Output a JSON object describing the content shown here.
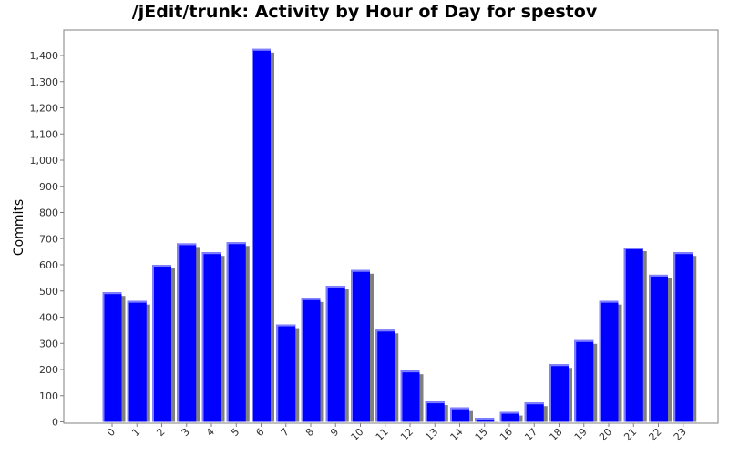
{
  "chart_data": {
    "type": "bar",
    "title": "/jEdit/trunk: Activity by Hour of Day for spestov",
    "xlabel": "",
    "ylabel": "Commits",
    "categories": [
      "0",
      "1",
      "2",
      "3",
      "4",
      "5",
      "6",
      "7",
      "8",
      "9",
      "10",
      "11",
      "12",
      "13",
      "14",
      "15",
      "16",
      "17",
      "18",
      "19",
      "20",
      "21",
      "22",
      "23"
    ],
    "values": [
      495,
      462,
      600,
      682,
      648,
      686,
      1425,
      372,
      472,
      520,
      580,
      352,
      196,
      78,
      55,
      15,
      38,
      74,
      220,
      312,
      462,
      666,
      562,
      648
    ],
    "yticks": [
      "0",
      "100",
      "200",
      "300",
      "400",
      "500",
      "600",
      "700",
      "800",
      "900",
      "1,000",
      "1,100",
      "1,200",
      "1,300",
      "1,400"
    ],
    "ylim": [
      0,
      1500
    ],
    "grid": false,
    "colors": {
      "bar": "#0000ff",
      "bar_highlight": "#8080ff",
      "shadow": "#808080",
      "plot_border": "#808080"
    }
  }
}
